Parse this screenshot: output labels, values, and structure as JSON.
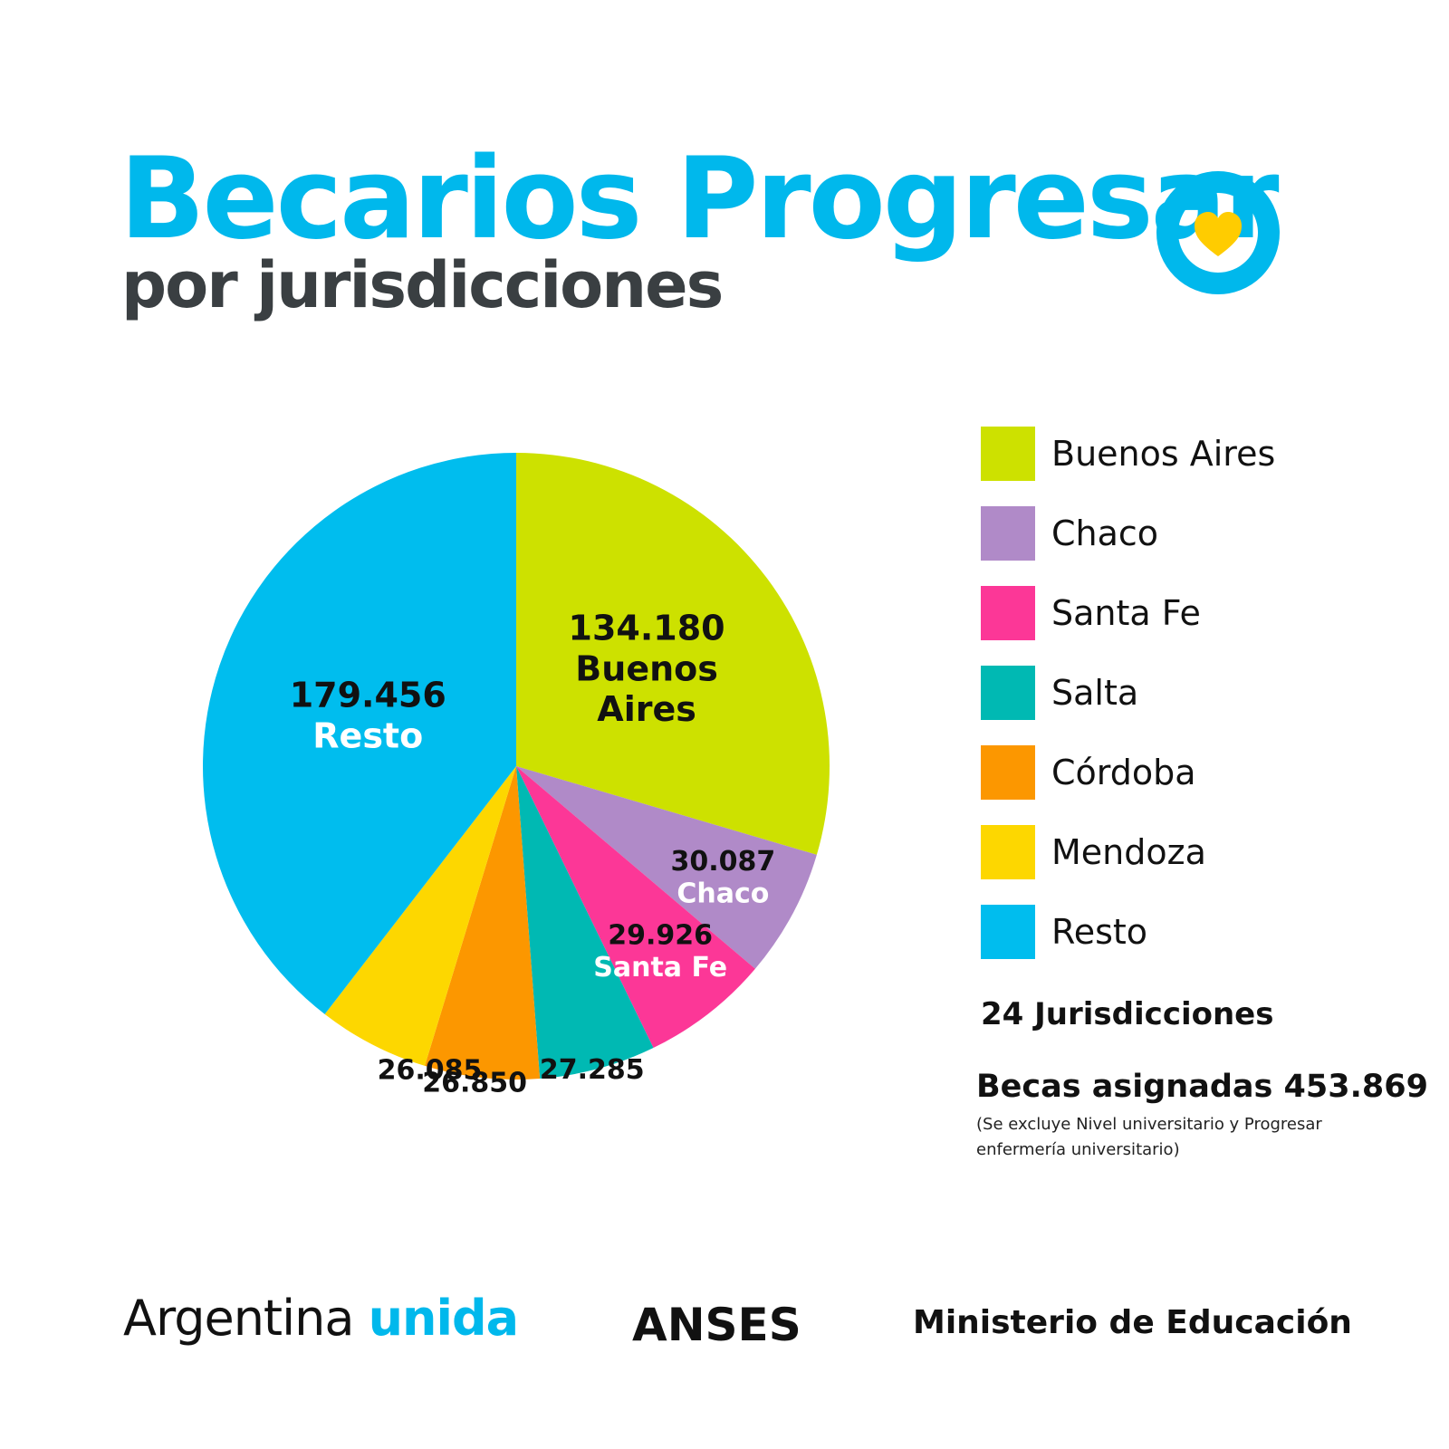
{
  "header": {
    "title": "Becarios Progresar",
    "subtitle": "por jurisdicciones"
  },
  "logo": {
    "icon": "heart-icon",
    "ring_color": "#00b8ec",
    "heart_color": "#ffcc00"
  },
  "chart_data": {
    "type": "pie",
    "title": "Becarios Progresar",
    "subtitle": "por jurisdicciones",
    "legend_position": "right",
    "slices": [
      {
        "name": "Buenos Aires",
        "value": 134180,
        "value_label": "134.180",
        "slice_text": [
          "Buenos",
          "Aires"
        ],
        "color": "#cde100"
      },
      {
        "name": "Chaco",
        "value": 30087,
        "value_label": "30.087",
        "slice_text": [
          "Chaco"
        ],
        "color": "#b08ac8"
      },
      {
        "name": "Santa Fe",
        "value": 29926,
        "value_label": "29.926",
        "slice_text": [
          "Santa Fe"
        ],
        "color": "#fc3797"
      },
      {
        "name": "Salta",
        "value": 27285,
        "value_label": "27.285",
        "slice_text": [],
        "color": "#00b9b3"
      },
      {
        "name": "Córdoba",
        "value": 26850,
        "value_label": "26.850",
        "slice_text": [],
        "color": "#fc9700"
      },
      {
        "name": "Mendoza",
        "value": 26085,
        "value_label": "26.085",
        "slice_text": [],
        "color": "#fdd700"
      },
      {
        "name": "Resto",
        "value": 179456,
        "value_label": "179.456",
        "slice_text": [
          "Resto"
        ],
        "color": "#00bdee"
      }
    ]
  },
  "summary": {
    "jurisdictions": "24 Jurisdicciones",
    "becas": "Becas asignadas 453.869",
    "note": "(Se excluye Nivel universitario y Progresar enfermería universitario)"
  },
  "footer": {
    "argentina": "Argentina",
    "unida": "unida",
    "anses": "ANSES",
    "ministry": "Ministerio de Educación"
  }
}
